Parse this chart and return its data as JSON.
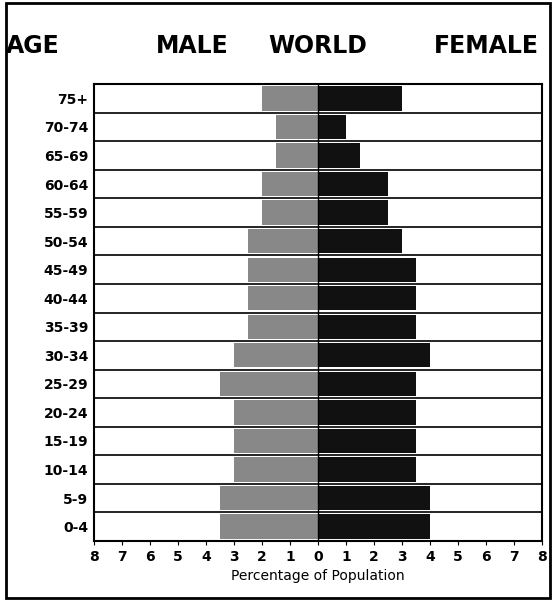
{
  "age_groups": [
    "0-4",
    "5-9",
    "10-14",
    "15-19",
    "20-24",
    "25-29",
    "30-34",
    "35-39",
    "40-44",
    "45-49",
    "50-54",
    "55-59",
    "60-64",
    "65-69",
    "70-74",
    "75+"
  ],
  "male": [
    3.5,
    3.5,
    3.0,
    3.0,
    3.0,
    3.5,
    3.0,
    2.5,
    2.5,
    2.5,
    2.5,
    2.0,
    2.0,
    1.5,
    1.5,
    2.0
  ],
  "female": [
    4.0,
    4.0,
    3.5,
    3.5,
    3.5,
    3.5,
    4.0,
    3.5,
    3.5,
    3.5,
    3.0,
    2.5,
    2.5,
    1.5,
    1.0,
    3.0
  ],
  "male_color": "#888888",
  "female_color": "#111111",
  "bg_color": "#ffffff",
  "title_age": "AGE",
  "title_male": "MALE",
  "title_world": "WORLD",
  "title_female": "FEMALE",
  "xlabel": "Percentage of Population",
  "xlim": 8,
  "title_fontsize": 17,
  "label_fontsize": 10,
  "tick_fontsize": 10,
  "age_label_fontsize": 10,
  "header_fontsize": 17
}
